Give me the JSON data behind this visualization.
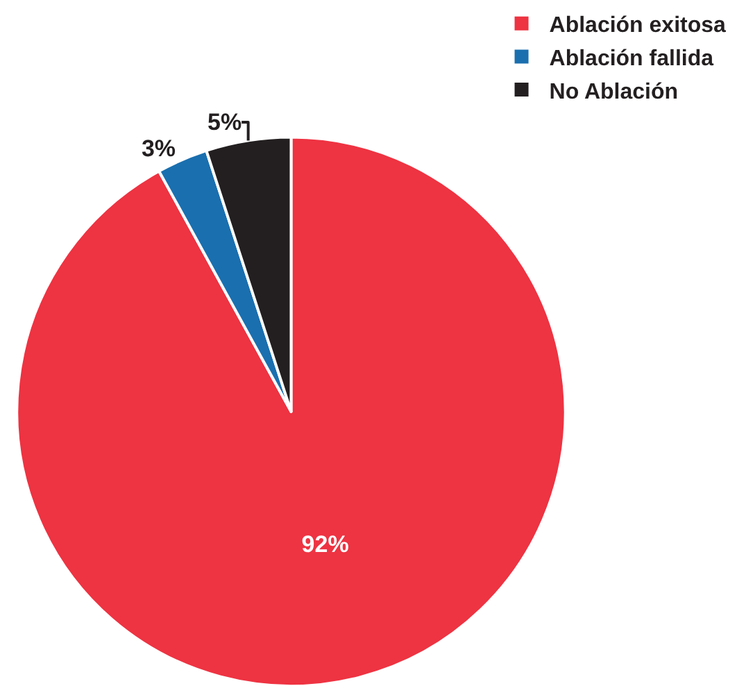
{
  "chart_data": {
    "type": "pie",
    "categories": [
      "Ablación exitosa",
      "Ablación fallida",
      "No Ablación"
    ],
    "values": [
      92,
      3,
      5
    ],
    "colors": [
      "#ee3342",
      "#1a6faf",
      "#231f20"
    ],
    "value_labels": [
      "92%",
      "3%",
      "5%"
    ],
    "legend": "top right"
  }
}
